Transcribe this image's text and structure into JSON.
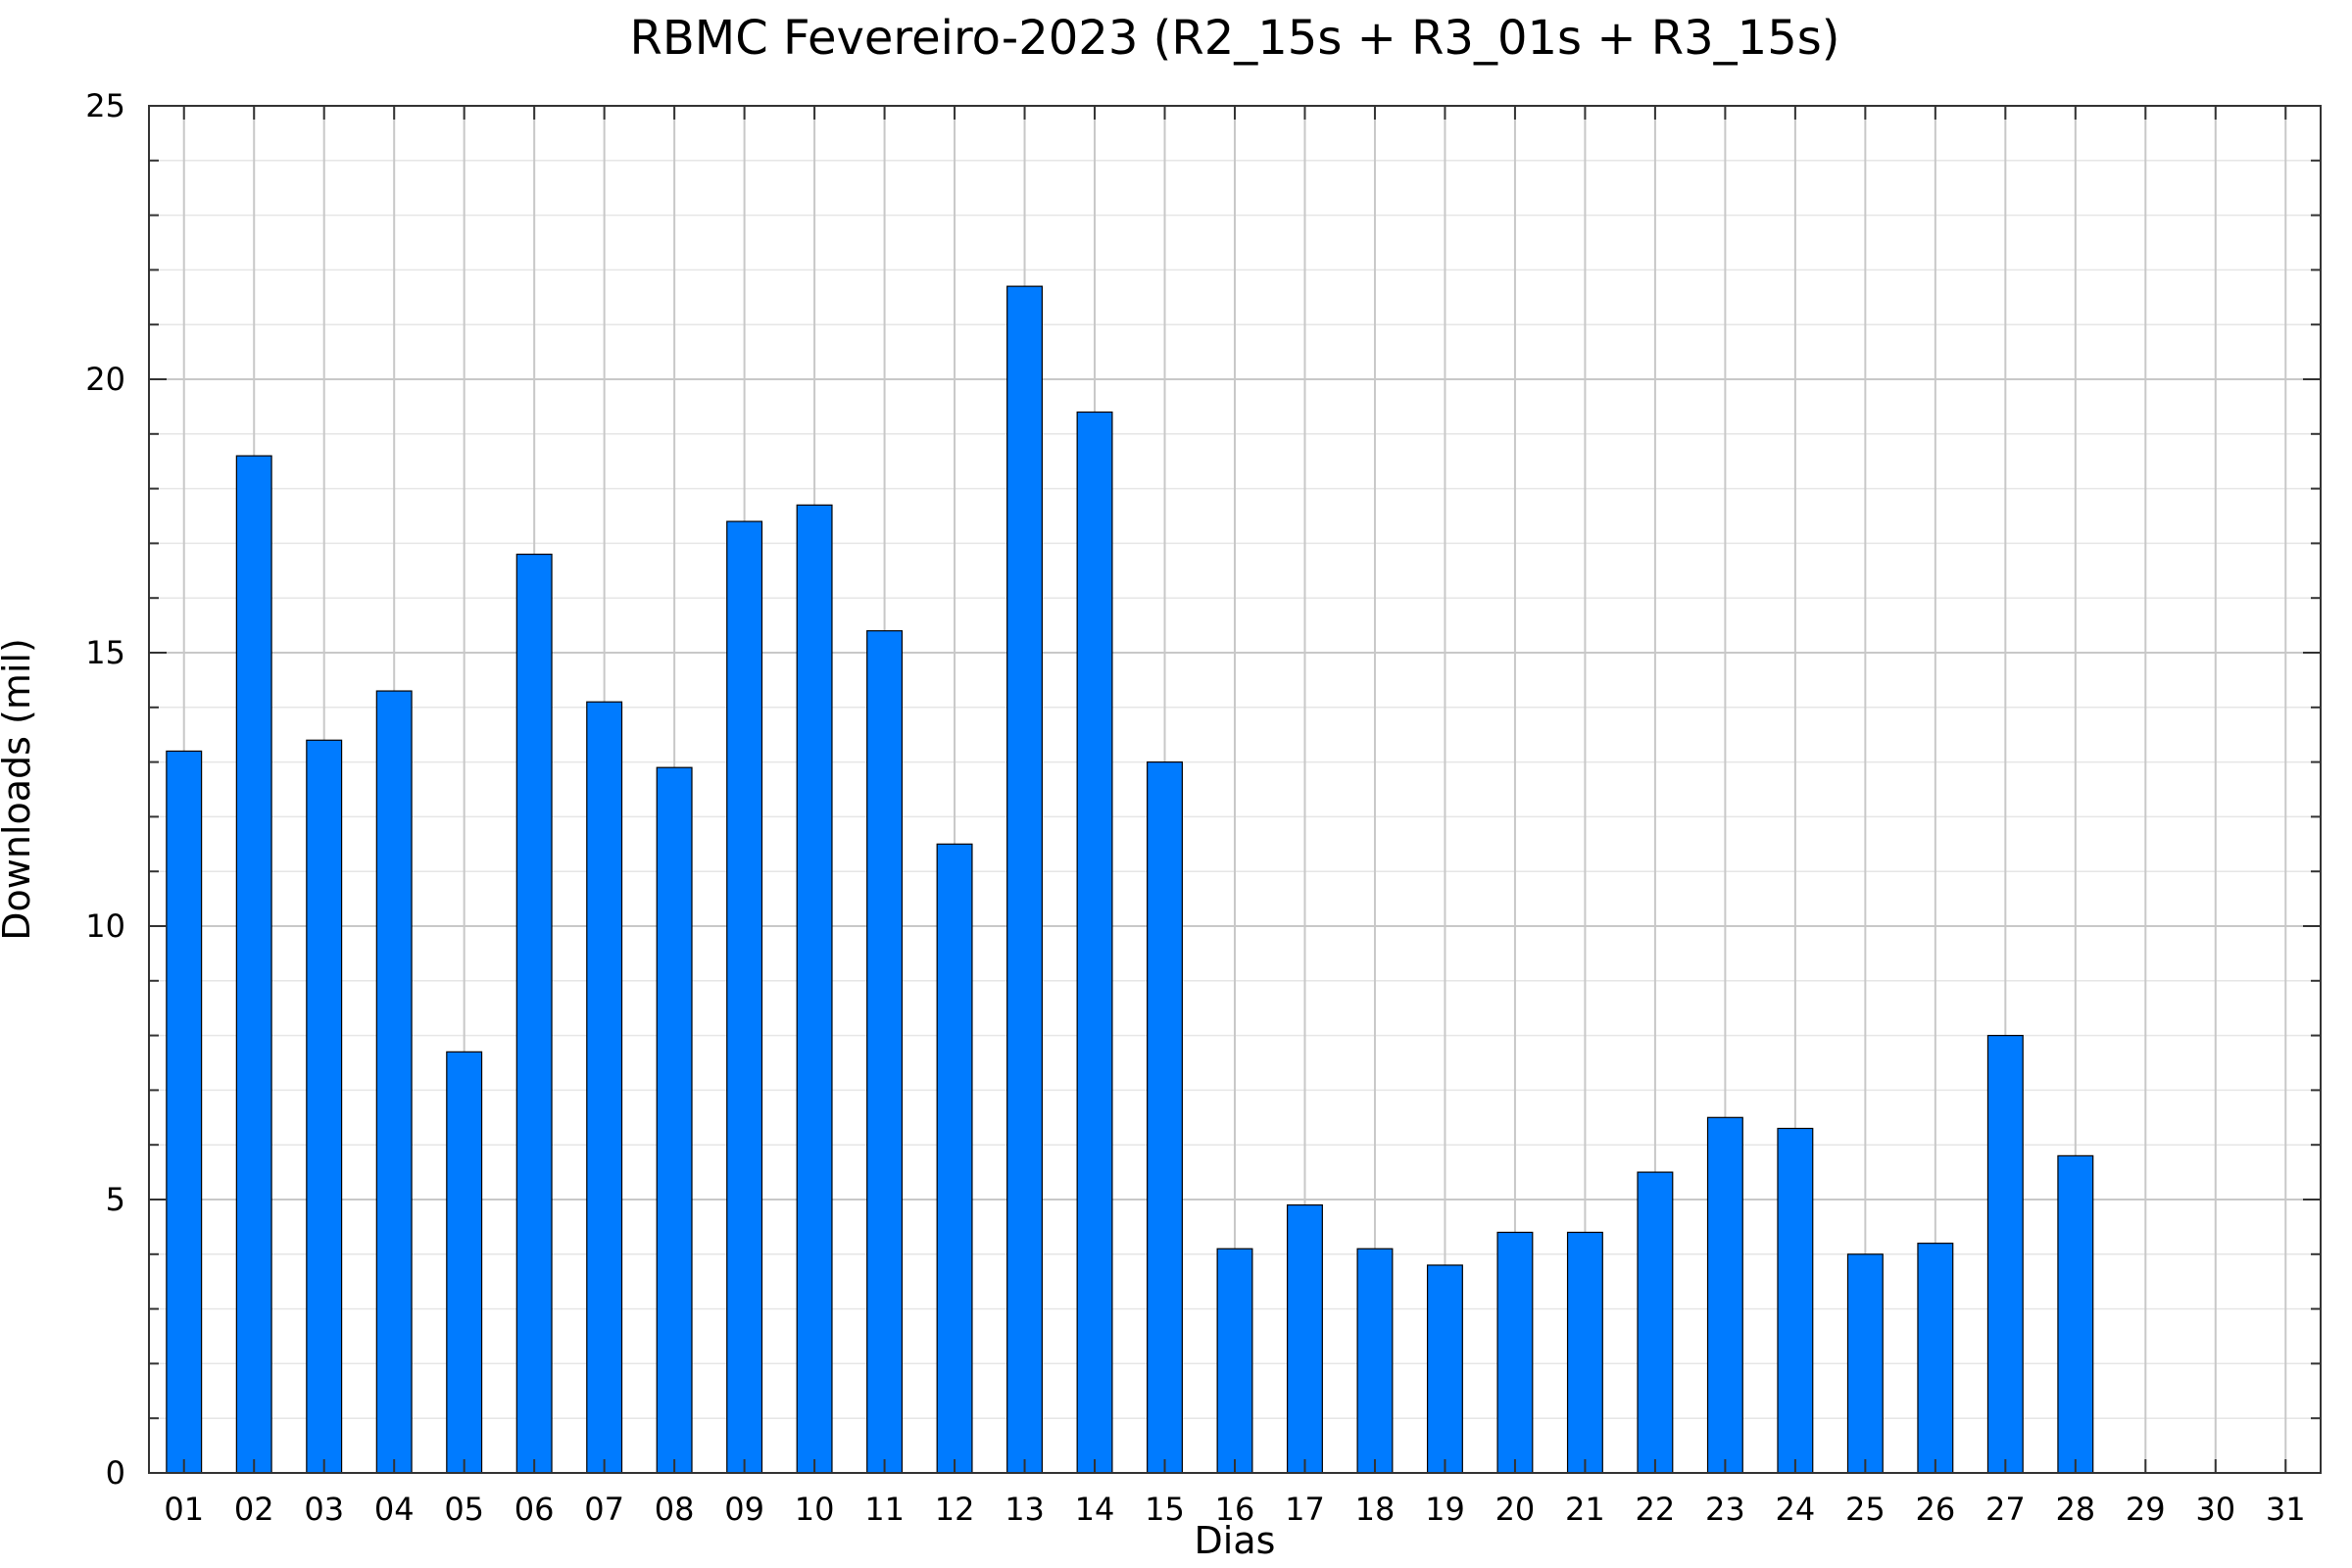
{
  "chart_data": {
    "type": "bar",
    "title": "RBMC Fevereiro-2023 (R2_15s + R3_01s + R3_15s)",
    "xlabel": "Dias",
    "ylabel": "Downloads (mil)",
    "ylim": [
      0,
      25
    ],
    "yticks": [
      0,
      5,
      10,
      15,
      20,
      25
    ],
    "ytick_labels": [
      "0",
      "5",
      "10",
      "15",
      "20",
      "25"
    ],
    "grid": true,
    "legend": "none",
    "categories": [
      "01",
      "02",
      "03",
      "04",
      "05",
      "06",
      "07",
      "08",
      "09",
      "10",
      "11",
      "12",
      "13",
      "14",
      "15",
      "16",
      "17",
      "18",
      "19",
      "20",
      "21",
      "22",
      "23",
      "24",
      "25",
      "26",
      "27",
      "28",
      "29",
      "30",
      "31"
    ],
    "values": [
      13.2,
      18.6,
      13.4,
      14.3,
      7.7,
      16.8,
      14.1,
      12.9,
      17.4,
      17.7,
      15.4,
      11.5,
      21.7,
      19.4,
      13.0,
      4.1,
      4.9,
      4.1,
      3.8,
      4.4,
      4.4,
      5.5,
      6.5,
      6.3,
      4.0,
      4.2,
      8.0,
      5.8,
      0,
      0,
      0
    ],
    "colors": {
      "bar": "#007bff",
      "bar_edge": "#000000",
      "grid_major": "#c8c8c8",
      "grid_minor": "#e6e6e6"
    }
  }
}
